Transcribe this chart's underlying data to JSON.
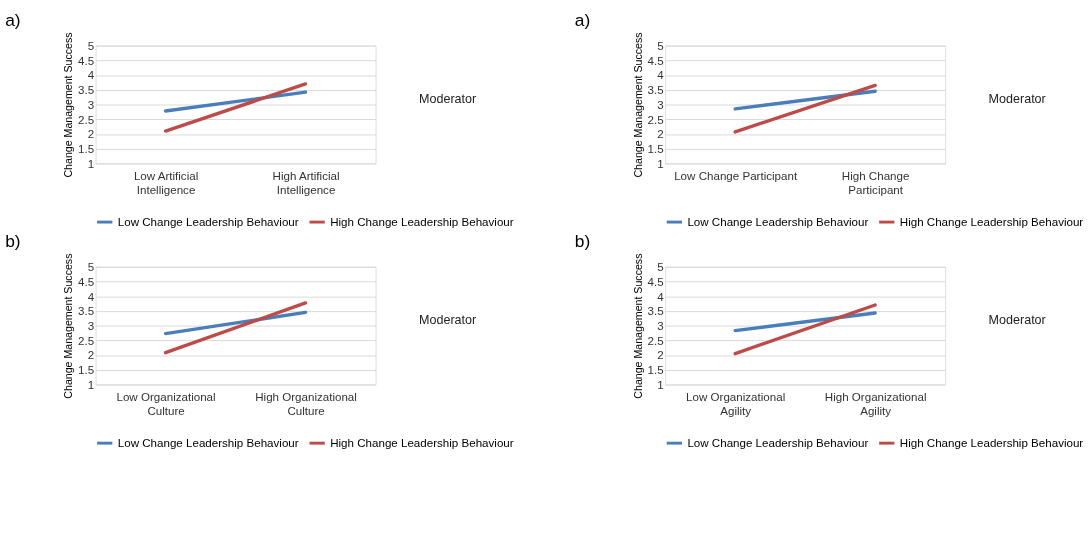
{
  "chart_data": [
    {
      "type": "line",
      "title": "a)",
      "ylabel": "Change Management Success",
      "categories": [
        "Low Artificial Intelligence",
        "High Artificial Intelligence"
      ],
      "ylim": [
        1,
        5
      ],
      "yticks": [
        1,
        1.5,
        2,
        2.5,
        3,
        3.5,
        4,
        4.5,
        5
      ],
      "grid": "y",
      "legend": "bottom",
      "annotations": [
        "Moderator"
      ],
      "series": [
        {
          "name": "Low Change Leadership Behaviour",
          "color": "#4a7ebb",
          "values": [
            2.78,
            3.42
          ]
        },
        {
          "name": "High Change Leadership Behaviour",
          "color": "#be4b48",
          "values": [
            2.1,
            3.7
          ]
        }
      ]
    },
    {
      "type": "line",
      "title": "a)",
      "ylabel": "Change Management Success",
      "categories": [
        "Low Change Participant",
        "High Change Participant"
      ],
      "ylim": [
        1,
        5
      ],
      "yticks": [
        1,
        1.5,
        2,
        2.5,
        3,
        3.5,
        4,
        4.5,
        5
      ],
      "grid": "y",
      "legend": "bottom",
      "annotations": [
        "Moderator"
      ],
      "series": [
        {
          "name": "Low Change Leadership Behaviour",
          "color": "#4a7ebb",
          "values": [
            2.85,
            3.45
          ]
        },
        {
          "name": "High Change Leadership Behaviour",
          "color": "#be4b48",
          "values": [
            2.07,
            3.65
          ]
        }
      ]
    },
    {
      "type": "line",
      "title": "b)",
      "ylabel": "Change Management Success",
      "categories": [
        "Low Organizational Culture",
        "High Organizational Culture"
      ],
      "ylim": [
        1,
        5
      ],
      "yticks": [
        1,
        1.5,
        2,
        2.5,
        3,
        3.5,
        4,
        4.5,
        5
      ],
      "grid": "y",
      "legend": "bottom",
      "annotations": [
        "Moderator"
      ],
      "series": [
        {
          "name": "Low Change Leadership Behaviour",
          "color": "#4a7ebb",
          "values": [
            2.73,
            3.45
          ]
        },
        {
          "name": "High Change Leadership Behaviour",
          "color": "#be4b48",
          "values": [
            2.08,
            3.77
          ]
        }
      ]
    },
    {
      "type": "line",
      "title": "b)",
      "ylabel": "Change Management Success",
      "categories": [
        "Low Organizational Agility",
        "High Organizational Agility"
      ],
      "ylim": [
        1,
        5
      ],
      "yticks": [
        1,
        1.5,
        2,
        2.5,
        3,
        3.5,
        4,
        4.5,
        5
      ],
      "grid": "y",
      "legend": "bottom",
      "annotations": [
        "Moderator"
      ],
      "series": [
        {
          "name": "Low Change Leadership Behaviour",
          "color": "#4a7ebb",
          "values": [
            2.83,
            3.43
          ]
        },
        {
          "name": "High Change Leadership Behaviour",
          "color": "#be4b48",
          "values": [
            2.05,
            3.7
          ]
        }
      ]
    }
  ]
}
